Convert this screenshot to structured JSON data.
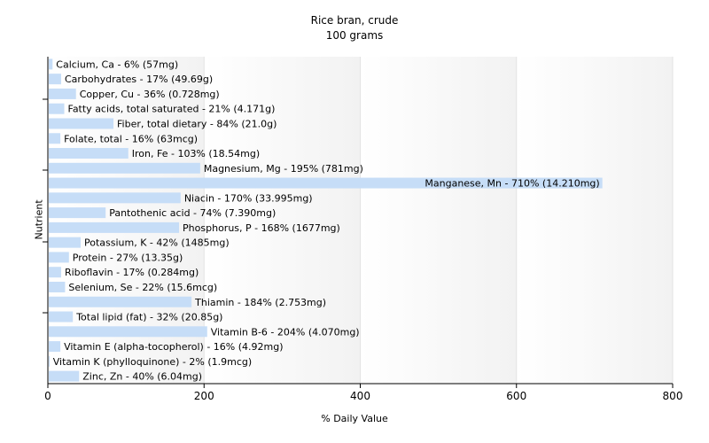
{
  "chart_data": {
    "type": "bar",
    "orientation": "horizontal",
    "title": "Rice bran, crude",
    "subtitle": "100 grams",
    "xlabel": "% Daily Value",
    "ylabel": "Nutrient",
    "xlim": [
      0,
      800
    ],
    "xticks": [
      "0",
      "200",
      "400",
      "600",
      "800"
    ],
    "grid": true,
    "bar_color": "#c6ddf7",
    "categories": [
      "Calcium, Ca - 6% (57mg)",
      "Carbohydrates - 17% (49.69g)",
      "Copper, Cu - 36% (0.728mg)",
      "Fatty acids, total saturated - 21% (4.171g)",
      "Fiber, total dietary - 84% (21.0g)",
      "Folate, total - 16% (63mcg)",
      "Iron, Fe - 103% (18.54mg)",
      "Magnesium, Mg - 195% (781mg)",
      "Manganese, Mn - 710% (14.210mg)",
      "Niacin - 170% (33.995mg)",
      "Pantothenic acid - 74% (7.390mg)",
      "Phosphorus, P - 168% (1677mg)",
      "Potassium, K - 42% (1485mg)",
      "Protein - 27% (13.35g)",
      "Riboflavin - 17% (0.284mg)",
      "Selenium, Se - 22% (15.6mcg)",
      "Thiamin - 184% (2.753mg)",
      "Total lipid (fat) - 32% (20.85g)",
      "Vitamin B-6 - 204% (4.070mg)",
      "Vitamin E (alpha-tocopherol) - 16% (4.92mg)",
      "Vitamin K (phylloquinone) - 2% (1.9mcg)",
      "Zinc, Zn - 40% (6.04mg)"
    ],
    "values": [
      6,
      17,
      36,
      21,
      84,
      16,
      103,
      195,
      710,
      170,
      74,
      168,
      42,
      27,
      17,
      22,
      184,
      32,
      204,
      16,
      2,
      40
    ]
  }
}
